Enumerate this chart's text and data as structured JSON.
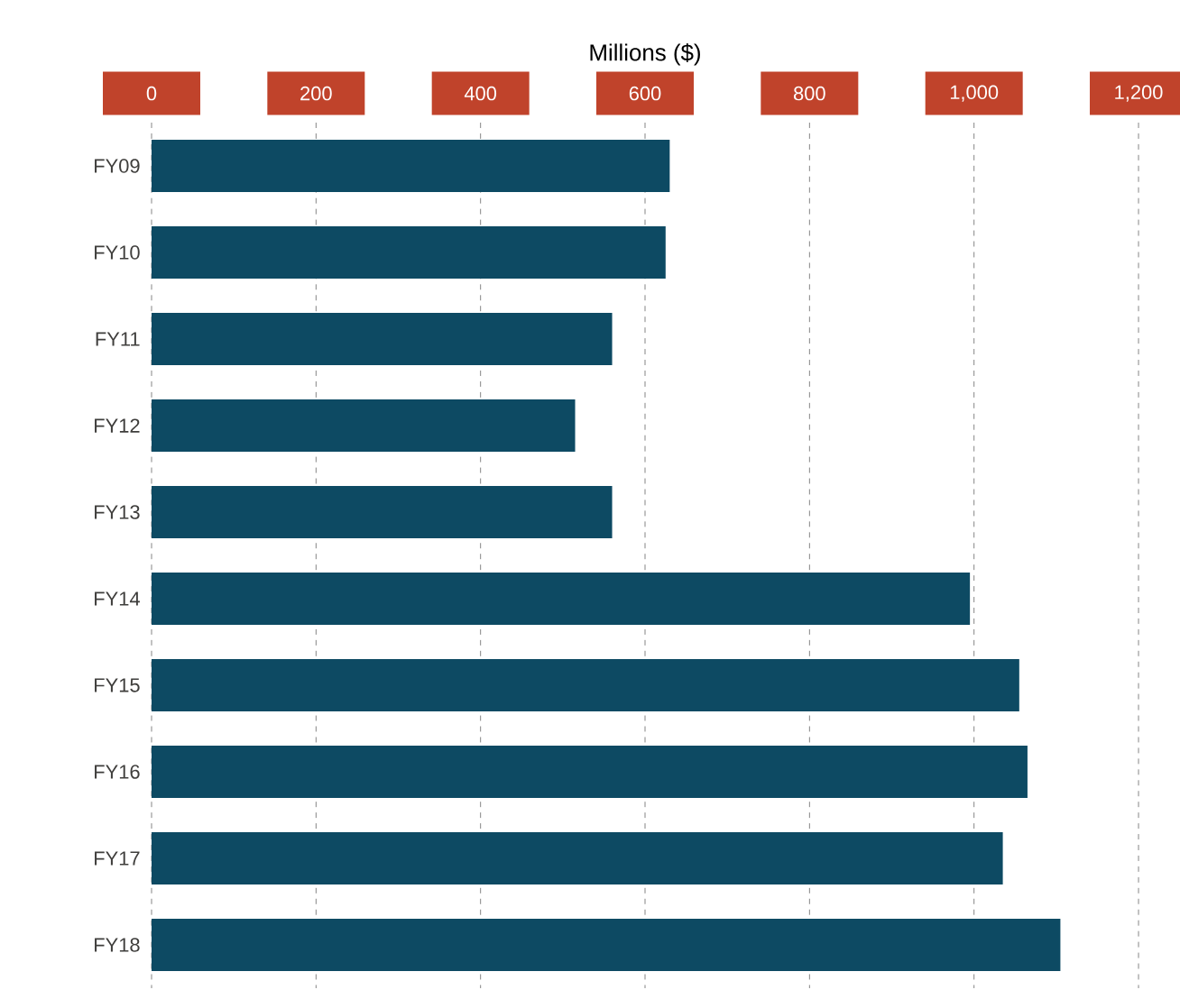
{
  "chart_data": {
    "type": "bar",
    "orientation": "horizontal",
    "xlabel": "Millions ($)",
    "categories": [
      "FY09",
      "FY10",
      "FY11",
      "FY12",
      "FY13",
      "FY14",
      "FY15",
      "FY16",
      "FY17",
      "FY18"
    ],
    "values": [
      630,
      625,
      560,
      515,
      560,
      995,
      1055,
      1065,
      1035,
      1105
    ],
    "color": "#0d4a63",
    "xlim": [
      0,
      1200
    ],
    "xticks": [
      0,
      200,
      400,
      600,
      800,
      {
        "value": 1000,
        "label": "1,000"
      },
      {
        "value": 1200,
        "label": "1,200"
      }
    ],
    "grid": "x"
  }
}
